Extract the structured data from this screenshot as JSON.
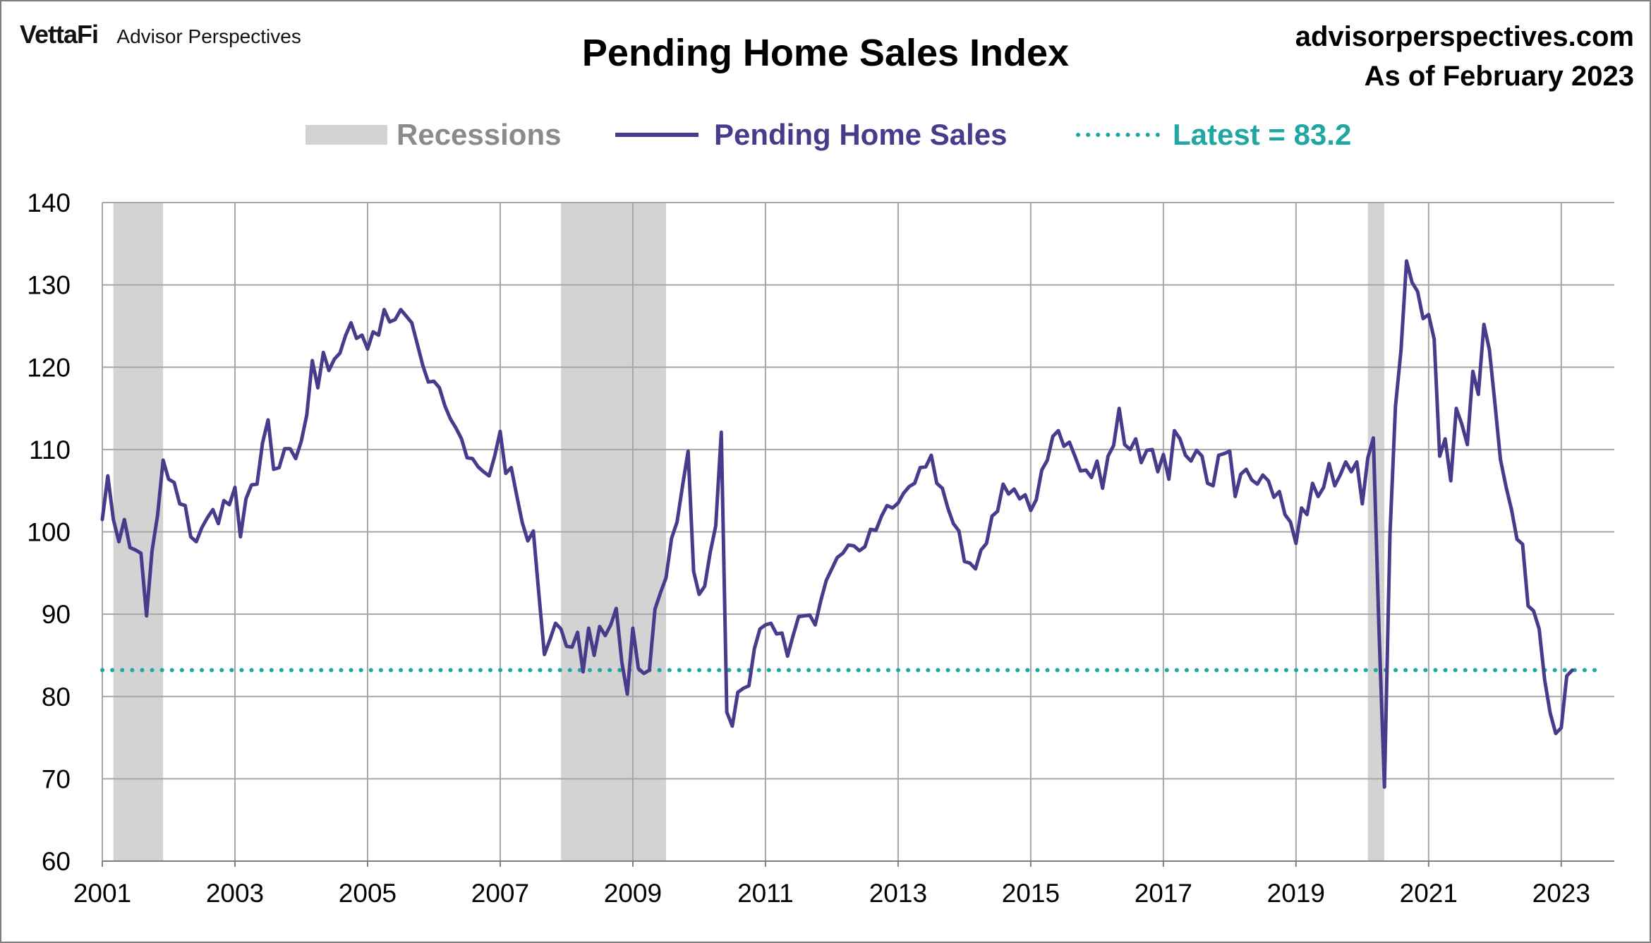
{
  "header": {
    "brand_logo": "VettaFi",
    "brand_sub": "Advisor Perspectives",
    "site": "advisorperspectives.com",
    "as_of": "As of February 2023"
  },
  "colors": {
    "line": "#4a3a8c",
    "latest": "#1fa8a3",
    "recession": "#d3d3d3",
    "recession_label": "#8a8a8a",
    "grid": "#a6a6a6"
  },
  "chart_data": {
    "type": "line",
    "title": "Pending Home Sales Index",
    "xlabel": "",
    "ylabel": "",
    "xlim": [
      2001.0,
      2023.8
    ],
    "ylim": [
      60,
      140
    ],
    "yticks": [
      60,
      70,
      80,
      90,
      100,
      110,
      120,
      130,
      140
    ],
    "xticks": [
      "2001",
      "2003",
      "2005",
      "2007",
      "2009",
      "2011",
      "2013",
      "2015",
      "2017",
      "2019",
      "2021",
      "2023"
    ],
    "grid": true,
    "legend": {
      "placement": "top-center",
      "recessions_label": "Recessions",
      "series_label": "Pending Home Sales",
      "latest_label": "Latest = 83.2"
    },
    "latest_value": 83.2,
    "recessions": [
      {
        "start": "2001-03",
        "end": "2001-11"
      },
      {
        "start": "2007-12",
        "end": "2009-06"
      },
      {
        "start": "2020-02",
        "end": "2020-04"
      }
    ],
    "series": [
      {
        "name": "Pending Home Sales",
        "x_start": "2001-01",
        "frequency": "monthly",
        "values": [
          101.5,
          106.8,
          101.5,
          98.8,
          101.5,
          98.1,
          97.8,
          97.4,
          89.8,
          97.7,
          102.0,
          108.7,
          106.4,
          106.0,
          103.4,
          103.2,
          99.4,
          98.8,
          100.5,
          101.7,
          102.7,
          101.0,
          103.8,
          103.3,
          105.4,
          99.4,
          104.0,
          105.7,
          105.8,
          110.8,
          113.6,
          107.6,
          107.8,
          110.1,
          110.1,
          108.9,
          111.0,
          114.2,
          120.8,
          117.5,
          121.8,
          119.6,
          121.0,
          121.7,
          123.8,
          125.4,
          123.5,
          123.9,
          122.2,
          124.3,
          123.9,
          127.0,
          125.5,
          125.8,
          127.0,
          126.2,
          125.4,
          122.8,
          120.2,
          118.2,
          118.3,
          117.5,
          115.3,
          113.7,
          112.6,
          111.3,
          109.0,
          108.9,
          107.9,
          107.3,
          106.8,
          109.2,
          112.2,
          107.1,
          107.8,
          104.4,
          101.1,
          98.9,
          100.1,
          92.4,
          85.1,
          86.9,
          88.9,
          88.2,
          86.1,
          86.0,
          87.8,
          83.0,
          88.3,
          85.0,
          88.5,
          87.4,
          88.7,
          90.7,
          84.2,
          80.3,
          88.3,
          83.4,
          82.8,
          83.2,
          90.6,
          92.6,
          94.4,
          99.2,
          101.2,
          105.6,
          109.8,
          95.2,
          92.4,
          93.4,
          97.5,
          100.7,
          112.1,
          78.1,
          76.4,
          80.5,
          81.0,
          81.3,
          85.8,
          88.2,
          88.7,
          88.9,
          87.6,
          87.7,
          84.9,
          87.4,
          89.7,
          89.8,
          89.9,
          88.7,
          91.6,
          94.1,
          95.5,
          96.9,
          97.4,
          98.4,
          98.3,
          97.7,
          98.2,
          100.3,
          100.2,
          101.9,
          103.2,
          102.9,
          103.5,
          104.7,
          105.5,
          105.9,
          107.8,
          107.9,
          109.3,
          105.9,
          105.3,
          102.9,
          101.0,
          100.1,
          96.4,
          96.2,
          95.5,
          97.8,
          98.6,
          101.9,
          102.5,
          105.8,
          104.6,
          105.2,
          104.0,
          104.5,
          102.6,
          103.9,
          107.5,
          108.7,
          111.6,
          112.3,
          110.4,
          110.9,
          109.2,
          107.4,
          107.5,
          106.6,
          108.6,
          105.3,
          109.2,
          110.5,
          115.0,
          110.6,
          110.0,
          111.3,
          108.4,
          109.9,
          110.0,
          107.3,
          109.4,
          106.4,
          112.3,
          111.3,
          109.3,
          108.6,
          109.9,
          109.2,
          105.9,
          105.6,
          109.3,
          109.5,
          109.8,
          104.3,
          107.0,
          107.6,
          106.3,
          105.8,
          106.9,
          106.2,
          104.2,
          104.9,
          102.1,
          101.2,
          98.6,
          102.9,
          102.1,
          105.9,
          104.3,
          105.4,
          108.3,
          105.6,
          106.9,
          108.5,
          107.3,
          108.5,
          103.4,
          109.0,
          111.4,
          88.6,
          69.0,
          99.6,
          115.2,
          122.1,
          132.9,
          130.3,
          129.2,
          125.9,
          126.4,
          123.4,
          109.2,
          111.3,
          106.2,
          115.0,
          113.1,
          110.6,
          119.5,
          116.7,
          125.2,
          122.1,
          115.6,
          108.8,
          105.5,
          102.7,
          99.1,
          98.5,
          91.0,
          90.4,
          88.2,
          82.0,
          78.0,
          75.5,
          76.2,
          82.5,
          83.2
        ]
      }
    ]
  }
}
